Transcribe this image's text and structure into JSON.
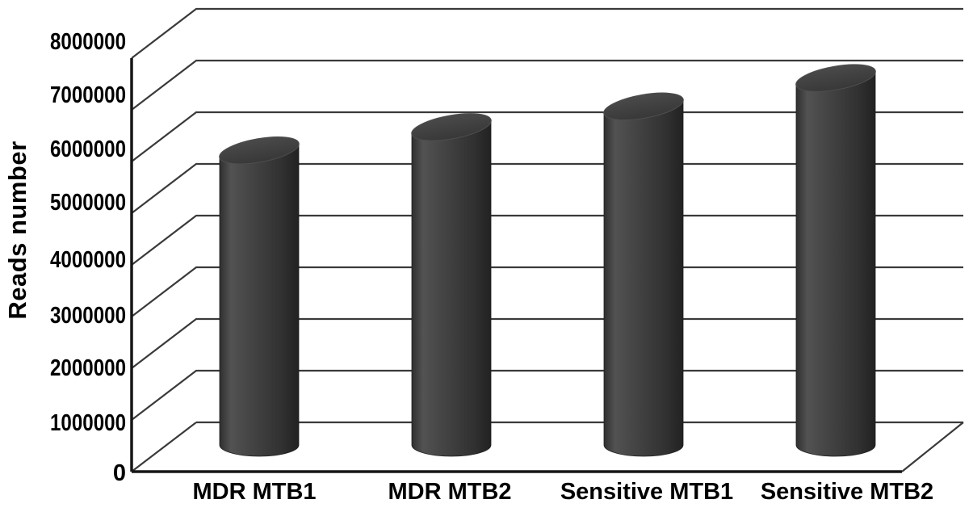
{
  "chart_data": {
    "type": "bar",
    "subtype": "3d-cylinder",
    "title": "",
    "xlabel": "",
    "ylabel": "Reads number",
    "categories": [
      "MDR MTB1",
      "MDR MTB2",
      "Sensitive MTB1",
      "Sensitive MTB2"
    ],
    "values": [
      5700000,
      6150000,
      6550000,
      7100000
    ],
    "ylim": [
      0,
      8000000
    ],
    "ytick_step": 1000000,
    "ytick_labels": [
      "0",
      "1000000",
      "2000000",
      "3000000",
      "4000000",
      "5000000",
      "6000000",
      "7000000",
      "8000000"
    ],
    "grid": true,
    "legend": false,
    "colors": {
      "background": "#ffffff",
      "text": "#000000",
      "grid": "#3a3a3a",
      "axis": "#161616",
      "bar_edge_left": "#2f2f2f",
      "bar_highlight": "#525252",
      "bar_mid": "#434343",
      "bar_dark": "#313131",
      "bar_edge_right": "#222222",
      "bar_outline": "#1f1f1f",
      "cap_top": "#4a4a4a",
      "cap_bottom": "#383838",
      "cap_rim": "#4e4e4e"
    }
  }
}
